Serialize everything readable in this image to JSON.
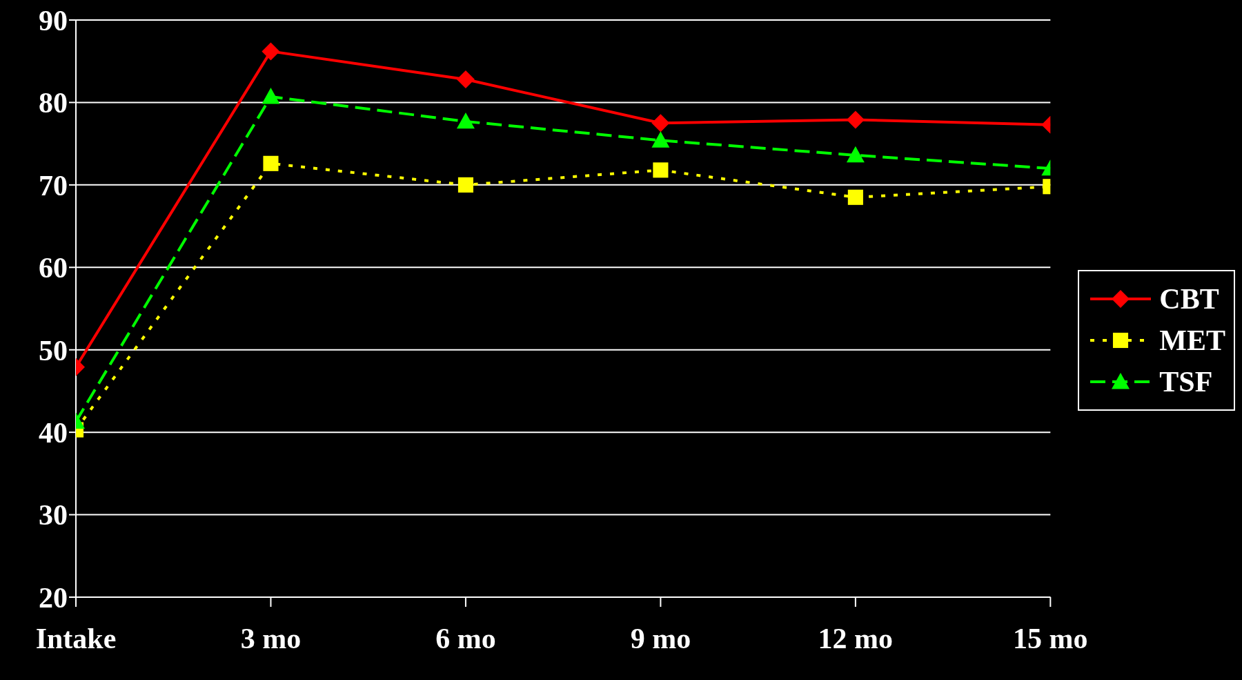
{
  "chart_data": {
    "type": "line",
    "categories": [
      "Intake",
      "3 mo",
      "6 mo",
      "9 mo",
      "12 mo",
      "15 mo"
    ],
    "series": [
      {
        "name": "CBT",
        "color": "#ff0000",
        "values": [
          47.9,
          86.2,
          82.8,
          77.5,
          77.9,
          77.3
        ],
        "marker": "diamond",
        "line_style": "solid"
      },
      {
        "name": "MET",
        "color": "#ffff00",
        "values": [
          40.3,
          72.6,
          70,
          71.8,
          68.5,
          69.8
        ],
        "marker": "square",
        "line_style": "dotted"
      },
      {
        "name": "TSF",
        "color": "#00ff00",
        "values": [
          41.3,
          80.7,
          77.7,
          75.4,
          73.6,
          72
        ],
        "marker": "triangle",
        "line_style": "dashed"
      }
    ],
    "ylim": [
      20,
      90
    ],
    "yticks": [
      20,
      30,
      40,
      50,
      60,
      70,
      80,
      90
    ],
    "grid": "y",
    "legend": "right"
  }
}
